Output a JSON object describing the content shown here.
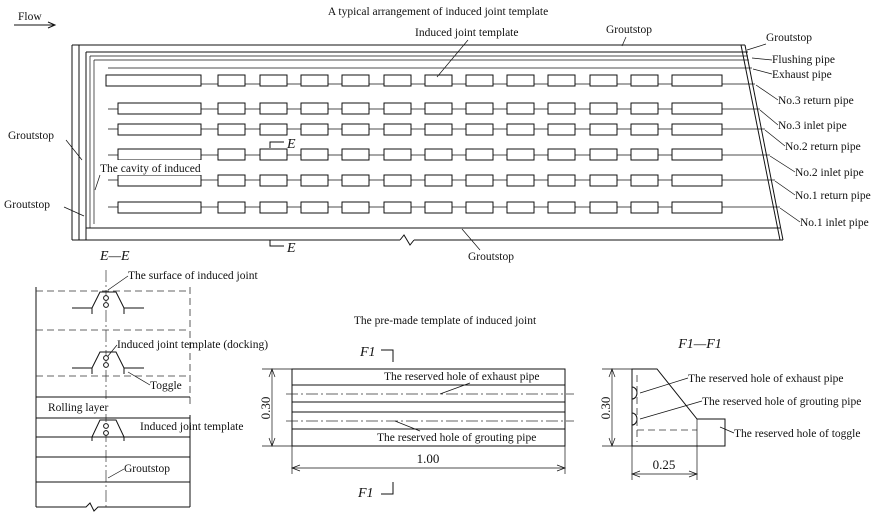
{
  "flow_label": "Flow",
  "plan": {
    "title": "A typical arrangement of induced joint template",
    "label_template": "Induced joint template",
    "label_groutstop_top": "Groutstop",
    "label_groutstop_right": "Groutstop",
    "label_flushing": "Flushing pipe",
    "label_exhaust": "Exhaust pipe",
    "label_no3_return": "No.3 return pipe",
    "label_no3_inlet": "No.3 inlet pipe",
    "label_no2_return": "No.2 return pipe",
    "label_no2_inlet": "No.2 inlet pipe",
    "label_no1_return": "No.1 return pipe",
    "label_no1_inlet": "No.1 inlet pipe",
    "label_groutstop_left1": "Groutstop",
    "label_groutstop_left2": "Groutstop",
    "label_cavity": "The cavity of induced",
    "label_groutstop_bottom": "Groutstop",
    "section_mark_top": "E",
    "section_mark_bottom": "E"
  },
  "section_ee": {
    "title": "E—E",
    "label_surface": "The surface of induced joint",
    "label_docking": "Induced joint template (docking)",
    "label_toggle": "Toggle",
    "label_rolling": "Rolling layer",
    "label_template": "Induced joint template",
    "label_groutstop": "Groutstop"
  },
  "premade": {
    "title": "The pre-made template of induced joint",
    "mark_top": "F1",
    "mark_bottom": "F1",
    "label_exhaust_hole": "The reserved hole of exhaust pipe",
    "label_grouting_hole": "The reserved hole of grouting pipe",
    "dim_height": "0.30",
    "dim_length": "1.00"
  },
  "section_f1": {
    "title": "F1—F1",
    "label_exhaust_hole": "The reserved hole of exhaust pipe",
    "label_grouting_hole": "The reserved hole of grouting pipe",
    "label_toggle_hole": "The reserved hole of toggle",
    "dim_height": "0.30",
    "dim_width": "0.25"
  }
}
